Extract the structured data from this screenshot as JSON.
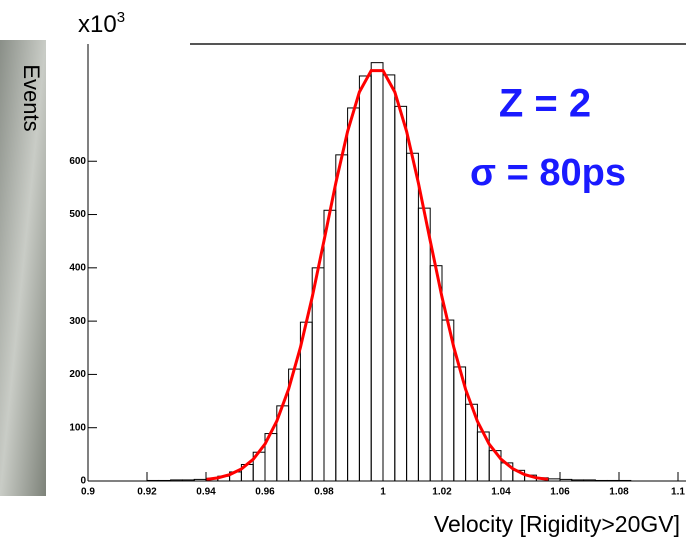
{
  "chart_data": {
    "type": "histogram",
    "y_multiplier": "x10",
    "y_multiplier_exponent": "3",
    "ylabel": "Events",
    "xlabel": "Velocity [Rigidity>20GV]",
    "annotations": [
      "Z = 2",
      "σ = 80ps"
    ],
    "bins": [
      0.9,
      0.904,
      0.908,
      0.912,
      0.916,
      0.92,
      0.924,
      0.928,
      0.932,
      0.936,
      0.94,
      0.944,
      0.948,
      0.952,
      0.956,
      0.96,
      0.964,
      0.968,
      0.972,
      0.976,
      0.98,
      0.984,
      0.988,
      0.992,
      0.996,
      1.0,
      1.004,
      1.008,
      1.012,
      1.016,
      1.02,
      1.024,
      1.028,
      1.032,
      1.036,
      1.04,
      1.044,
      1.048,
      1.052,
      1.056,
      1.06,
      1.064,
      1.068,
      1.072,
      1.076,
      1.08,
      1.084,
      1.088,
      1.092,
      1.096,
      1.1
    ],
    "counts": [
      0,
      0,
      0,
      0,
      0,
      1,
      1,
      2,
      2,
      3,
      5,
      9,
      17,
      31,
      54,
      89,
      141,
      210,
      298,
      400,
      508,
      612,
      700,
      760,
      785,
      762,
      703,
      615,
      512,
      404,
      302,
      214,
      144,
      92,
      57,
      34,
      20,
      11,
      6,
      4,
      3,
      2,
      2,
      1,
      1,
      1,
      0,
      0,
      0,
      0
    ],
    "color": "#000000",
    "fit": {
      "color": "#ff0000",
      "x": [
        0.94,
        0.944,
        0.948,
        0.952,
        0.956,
        0.96,
        0.964,
        0.968,
        0.972,
        0.976,
        0.98,
        0.984,
        0.988,
        0.992,
        0.996,
        1.0,
        1.004,
        1.008,
        1.012,
        1.016,
        1.02,
        1.024,
        1.028,
        1.032,
        1.036,
        1.04,
        1.044,
        1.048,
        1.052,
        1.056
      ],
      "values": [
        2.8,
        5.9,
        11.9,
        22.6,
        40.7,
        69.4,
        112.4,
        172.4,
        250.6,
        345,
        451,
        559,
        656,
        730,
        770,
        770,
        730,
        656,
        559,
        451,
        345,
        251,
        172,
        112,
        69,
        41,
        23,
        12,
        6,
        3
      ]
    },
    "xlim": [
      0.9,
      1.1
    ],
    "ylim": [
      0,
      820
    ],
    "xticks": [
      0.9,
      0.92,
      0.94,
      0.96,
      0.98,
      1,
      1.02,
      1.04,
      1.06,
      1.08,
      1.1
    ],
    "yticks": [
      0,
      100,
      200,
      300,
      400,
      500,
      600
    ],
    "annotation_color": "#1a1aff"
  }
}
